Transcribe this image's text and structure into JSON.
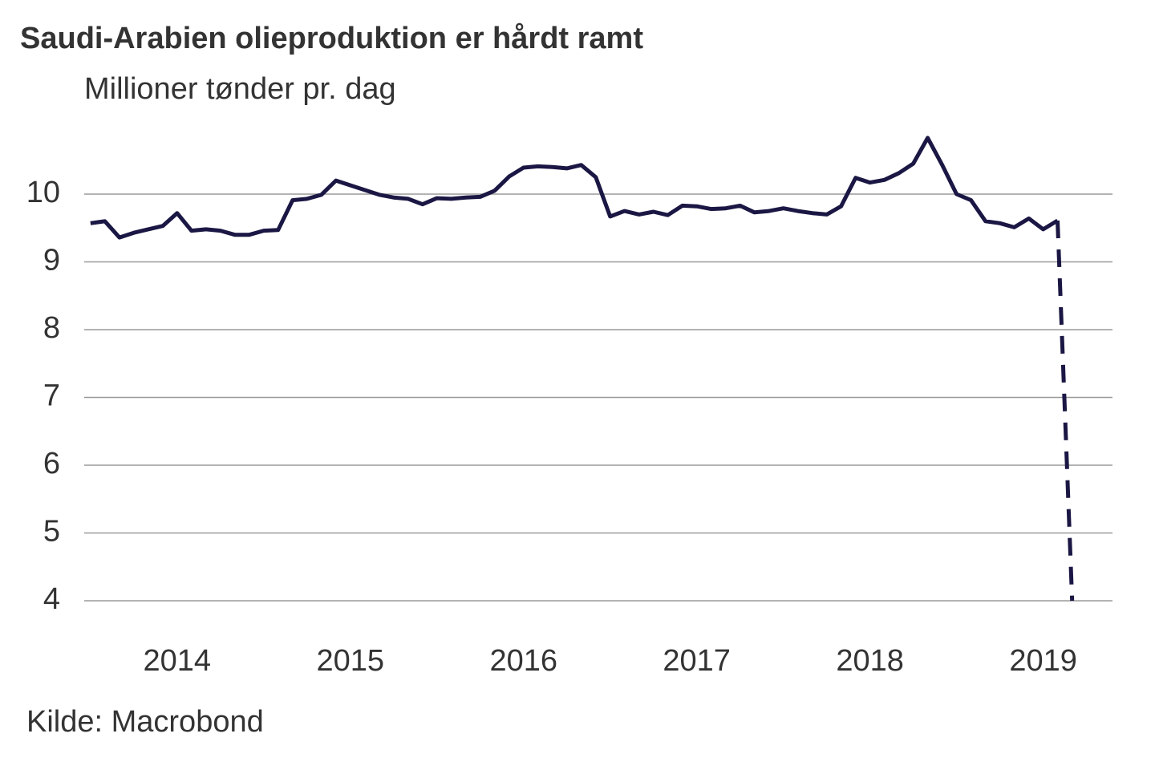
{
  "chart_data": {
    "type": "line",
    "title": "Saudi-Arabien olieproduktion er hårdt ramt",
    "subtitle": "Millioner tønder pr. dag",
    "source": "Kilde: Macrobond",
    "x": [
      2014,
      2014.083,
      2014.167,
      2014.25,
      2014.333,
      2014.417,
      2014.5,
      2014.583,
      2014.667,
      2014.75,
      2014.833,
      2014.917,
      2015,
      2015.083,
      2015.167,
      2015.25,
      2015.333,
      2015.417,
      2015.5,
      2015.583,
      2015.667,
      2015.75,
      2015.833,
      2015.917,
      2016,
      2016.083,
      2016.167,
      2016.25,
      2016.333,
      2016.417,
      2016.5,
      2016.583,
      2016.667,
      2016.75,
      2016.833,
      2016.917,
      2017,
      2017.083,
      2017.167,
      2017.25,
      2017.333,
      2017.417,
      2017.5,
      2017.583,
      2017.667,
      2017.75,
      2017.833,
      2017.917,
      2018,
      2018.083,
      2018.167,
      2018.25,
      2018.333,
      2018.417,
      2018.5,
      2018.583,
      2018.667,
      2018.75,
      2018.833,
      2018.917,
      2019,
      2019.083,
      2019.167,
      2019.25,
      2019.333,
      2019.417,
      2019.5,
      2019.583
    ],
    "series": [
      {
        "color": "#1b1744",
        "dashed": false,
        "values": [
          9.57,
          9.6,
          9.36,
          9.43,
          9.48,
          9.53,
          9.72,
          9.46,
          9.48,
          9.46,
          9.4,
          9.4,
          9.46,
          9.47,
          9.91,
          9.93,
          9.99,
          10.2,
          10.13,
          10.06,
          9.99,
          9.95,
          9.93,
          9.85,
          9.94,
          9.93,
          9.95,
          9.96,
          10.05,
          10.26,
          10.39,
          10.41,
          10.4,
          10.38,
          10.43,
          10.25,
          9.67,
          9.75,
          9.7,
          9.74,
          9.69,
          9.83,
          9.82,
          9.78,
          9.79,
          9.83,
          9.73,
          9.75,
          9.79,
          9.75,
          9.72,
          9.7,
          9.82,
          10.24,
          10.17,
          10.21,
          10.31,
          10.45,
          10.83,
          10.43,
          10,
          9.91,
          9.6,
          9.57,
          9.51,
          9.64,
          9.48,
          9.61
        ]
      },
      {
        "color": "#1b1744",
        "dashed": true,
        "x": [
          2019.583,
          2019.667
        ],
        "values": [
          9.61,
          4
        ]
      }
    ],
    "xlim": [
      2013.95,
      2019.9
    ],
    "xticks": [
      {
        "value": 2014.5,
        "label": "2014"
      },
      {
        "value": 2015.5,
        "label": "2015"
      },
      {
        "value": 2016.5,
        "label": "2016"
      },
      {
        "value": 2017.5,
        "label": "2017"
      },
      {
        "value": 2018.5,
        "label": "2018"
      },
      {
        "value": 2019.5,
        "label": "2019"
      }
    ],
    "ylim": [
      4,
      11
    ],
    "yticks": [
      4,
      5,
      6,
      7,
      8,
      9,
      10
    ],
    "grid": true
  }
}
